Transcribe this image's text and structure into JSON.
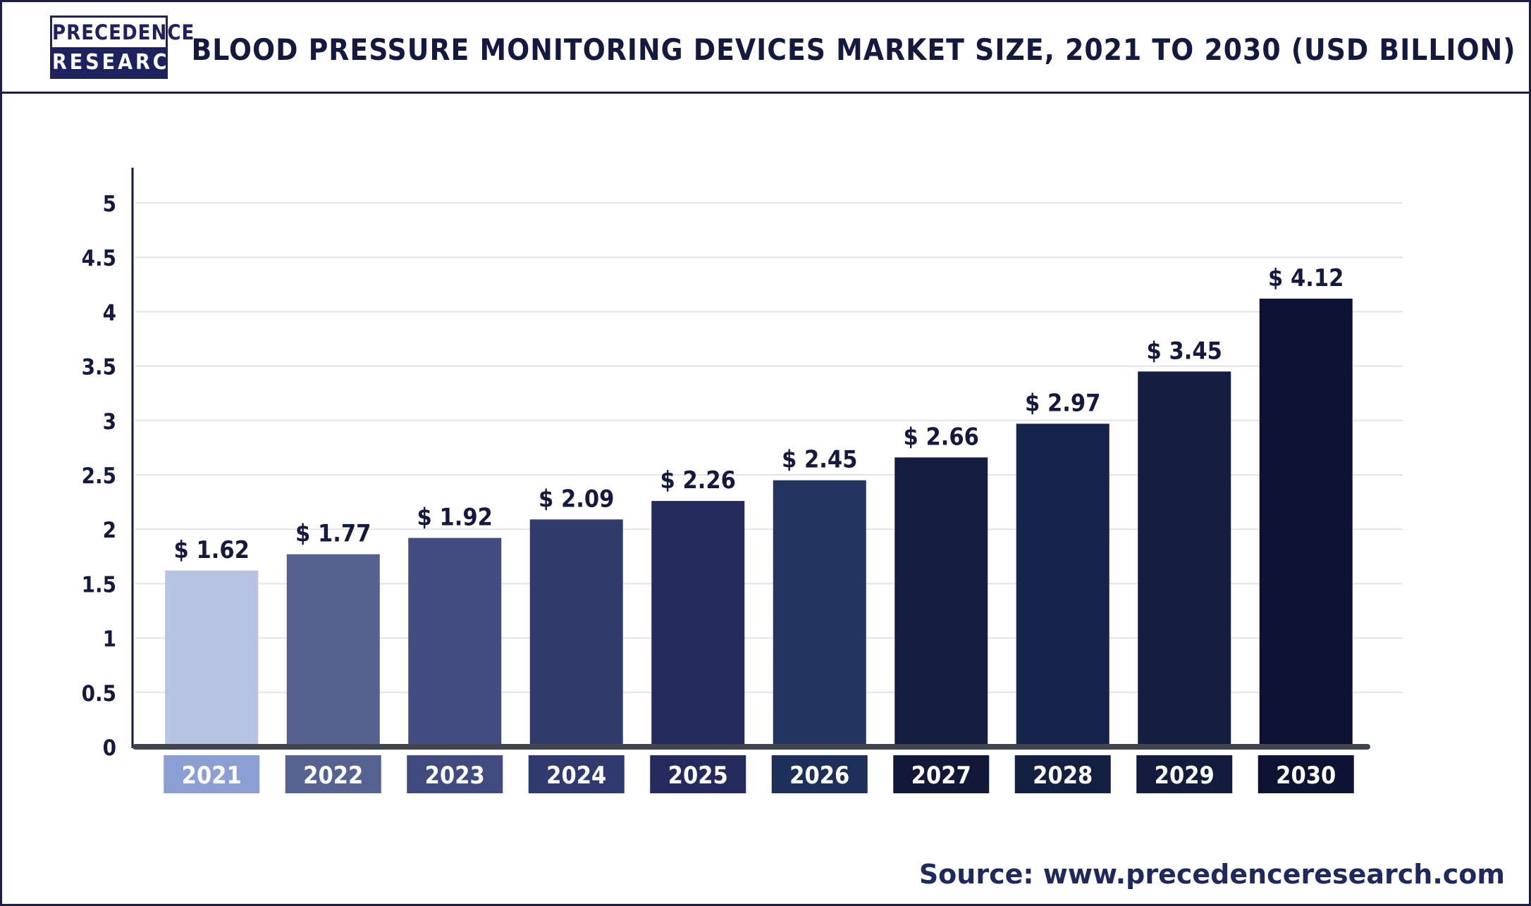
{
  "brand": {
    "line1": "PRECEDENCE",
    "line2": "RESEARCH"
  },
  "chart_data": {
    "type": "bar",
    "title": "BLOOD PRESSURE MONITORING DEVICES MARKET SIZE, 2021 TO 2030 (USD BILLION)",
    "categories": [
      "2021",
      "2022",
      "2023",
      "2024",
      "2025",
      "2026",
      "2027",
      "2028",
      "2029",
      "2030"
    ],
    "values": [
      1.62,
      1.77,
      1.92,
      2.09,
      2.26,
      2.45,
      2.66,
      2.97,
      3.45,
      4.12
    ],
    "value_labels": [
      "$ 1.62",
      "$ 1.77",
      "$ 1.92",
      "$ 2.09",
      "$ 2.26",
      "$ 2.45",
      "$ 2.66",
      "$ 2.97",
      "$ 3.45",
      "$ 4.12"
    ],
    "y_ticks": [
      "0",
      "0.5",
      "1",
      "1.5",
      "2",
      "2.5",
      "3",
      "3.5",
      "4",
      "4.5",
      "5"
    ],
    "ylim": [
      0,
      5
    ],
    "xlabel": "",
    "ylabel": "",
    "grid": true,
    "bar_colors": [
      "#b8c3e2",
      "#55628f",
      "#434c80",
      "#313b6e",
      "#252a5e",
      "#213560",
      "#141c42",
      "#14244a",
      "#141d3f",
      "#0b1234"
    ],
    "label_box_colors": [
      "#8c9fd2",
      "#56628f",
      "#424b80",
      "#303a6e",
      "#242a5e",
      "#1e3059",
      "#111838",
      "#141f44",
      "#131c3c",
      "#0b1232"
    ]
  },
  "source": "Source: www.precedenceresearch.com"
}
